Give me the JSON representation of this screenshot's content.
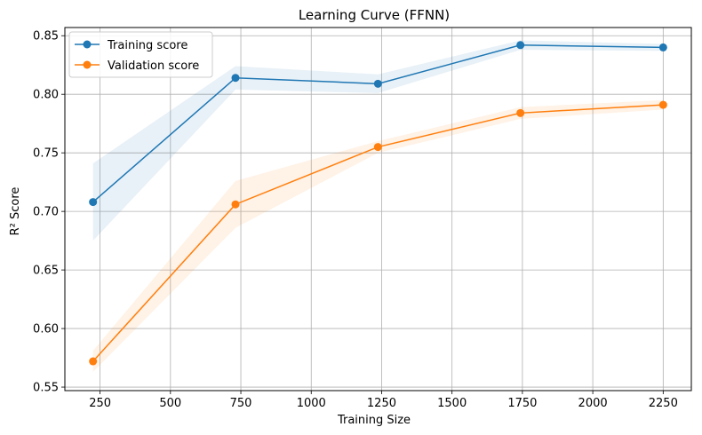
{
  "chart_data": {
    "type": "line",
    "title": "Learning Curve (FFNN)",
    "xlabel": "Training Size",
    "ylabel": "R² Score",
    "x": [
      225,
      731,
      1237,
      1743,
      2250
    ],
    "xlim": [
      125,
      2350
    ],
    "ylim": [
      0.547,
      0.857
    ],
    "xticks": [
      250,
      500,
      750,
      1000,
      1250,
      1500,
      1750,
      2000,
      2250
    ],
    "xtick_labels": [
      "250",
      "500",
      "750",
      "1000",
      "1250",
      "1500",
      "1750",
      "2000",
      "2250"
    ],
    "yticks": [
      0.55,
      0.6,
      0.65,
      0.7,
      0.75,
      0.8,
      0.85
    ],
    "ytick_labels": [
      "0.55",
      "0.60",
      "0.65",
      "0.70",
      "0.75",
      "0.80",
      "0.85"
    ],
    "grid": true,
    "legend_position": "top-left",
    "series": [
      {
        "name": "Training score",
        "color": "#1f77b4",
        "values": [
          0.708,
          0.814,
          0.809,
          0.842,
          0.84
        ],
        "band_low": [
          0.675,
          0.804,
          0.801,
          0.838,
          0.837
        ],
        "band_high": [
          0.741,
          0.824,
          0.817,
          0.846,
          0.843
        ]
      },
      {
        "name": "Validation score",
        "color": "#ff7f0e",
        "values": [
          0.572,
          0.706,
          0.755,
          0.784,
          0.791
        ],
        "band_low": [
          0.563,
          0.686,
          0.75,
          0.779,
          0.787
        ],
        "band_high": [
          0.581,
          0.726,
          0.76,
          0.789,
          0.795
        ]
      }
    ]
  }
}
